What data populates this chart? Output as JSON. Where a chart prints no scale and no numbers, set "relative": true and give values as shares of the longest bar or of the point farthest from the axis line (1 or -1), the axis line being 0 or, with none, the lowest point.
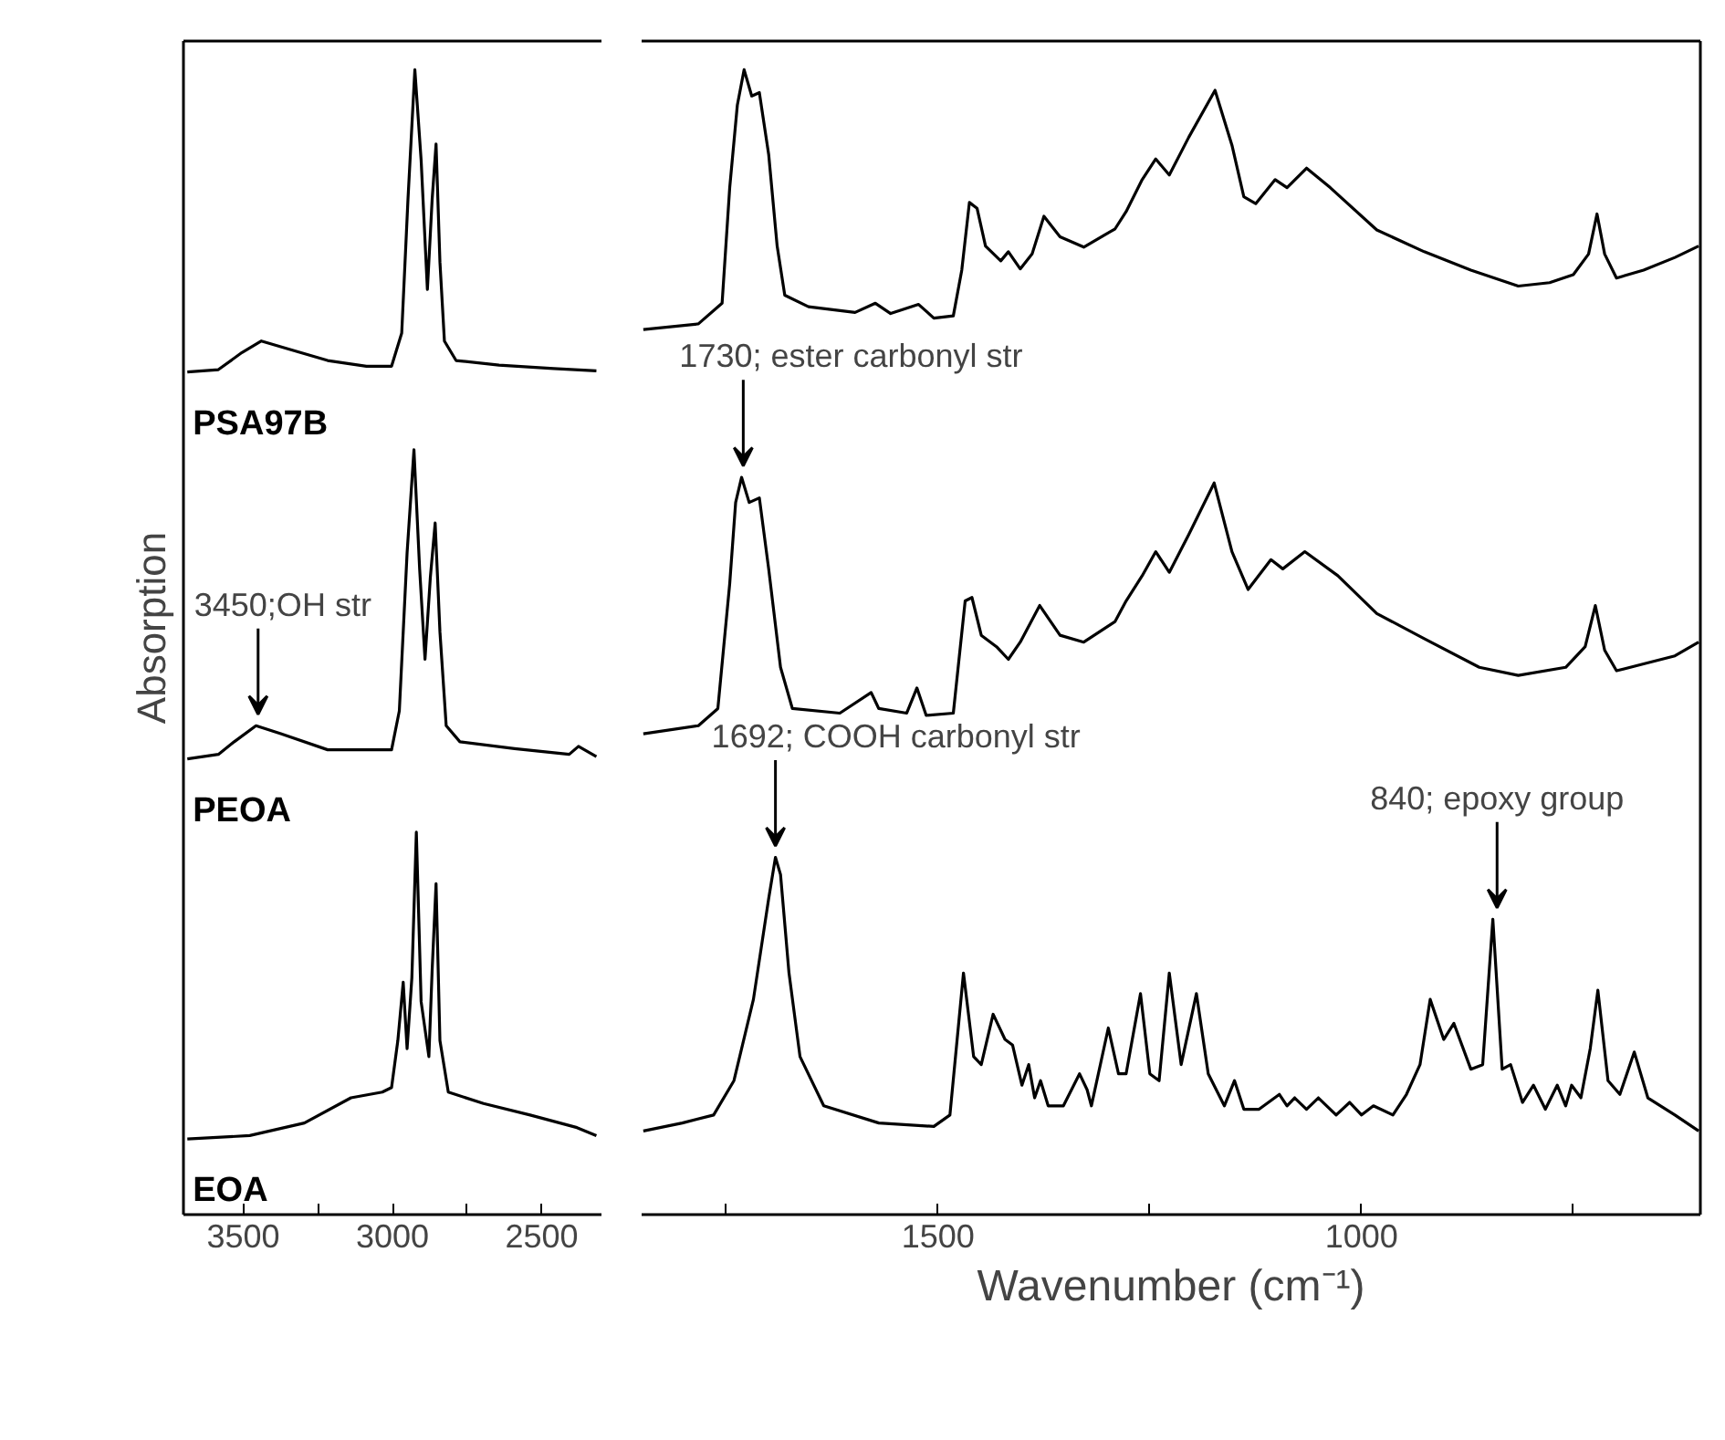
{
  "chart_data": [
    {
      "type": "line",
      "relative": true,
      "ylabel": "Absorption",
      "xlim": [
        3700,
        2300
      ],
      "xticks": [
        3500,
        {
          "value": 3250,
          "label": null
        },
        3000,
        {
          "value": 2750,
          "label": null
        },
        2500
      ],
      "tick_labels": "x",
      "series": [
        {
          "name": "PSA97B",
          "color": "#000000",
          "x": [
            3687,
            3583,
            3504,
            3439,
            3348,
            3217,
            3087,
            3003,
            2969,
            2948,
            2925,
            2904,
            2883,
            2867,
            2854,
            2841,
            2826,
            2787,
            2643,
            2460,
            2317
          ],
          "values": [
            0.736,
            0.738,
            0.753,
            0.763,
            0.756,
            0.746,
            0.741,
            0.741,
            0.77,
            0.887,
            1.0,
            0.921,
            0.808,
            0.887,
            0.935,
            0.832,
            0.763,
            0.746,
            0.742,
            0.739,
            0.737
          ]
        },
        {
          "name": "PEOA",
          "color": "#000000",
          "x": [
            3687,
            3583,
            3530,
            3457,
            3374,
            3217,
            3003,
            2977,
            2951,
            2928,
            2909,
            2891,
            2873,
            2857,
            2841,
            2820,
            2774,
            2591,
            2408,
            2377,
            2317
          ],
          "values": [
            0.398,
            0.402,
            0.413,
            0.427,
            0.42,
            0.406,
            0.406,
            0.44,
            0.578,
            0.668,
            0.564,
            0.485,
            0.557,
            0.604,
            0.509,
            0.427,
            0.413,
            0.407,
            0.402,
            0.409,
            0.4
          ]
        },
        {
          "name": "EOA",
          "color": "#000000",
          "x": [
            3687,
            3478,
            3295,
            3139,
            3034,
            3003,
            2982,
            2964,
            2951,
            2935,
            2920,
            2904,
            2878,
            2867,
            2854,
            2841,
            2813,
            2695,
            2539,
            2382,
            2317
          ],
          "values": [
            0.066,
            0.069,
            0.08,
            0.102,
            0.107,
            0.111,
            0.152,
            0.203,
            0.145,
            0.207,
            0.334,
            0.186,
            0.138,
            0.214,
            0.289,
            0.152,
            0.107,
            0.097,
            0.087,
            0.076,
            0.069
          ]
        }
      ],
      "annotations": [
        {
          "text": "3450;OH str",
          "x": 3450,
          "y": 0.427
        }
      ]
    },
    {
      "type": "line",
      "relative": true,
      "xlabel": "Wavenumber (cm⁻¹)",
      "xlim": [
        1850,
        600
      ],
      "xticks": [
        {
          "value": 1750,
          "label": null
        },
        1500,
        {
          "value": 1250,
          "label": null
        },
        1000,
        {
          "value": 750,
          "label": null
        }
      ],
      "tick_labels": "x",
      "series": [
        {
          "color": "#000000",
          "x": [
            1848,
            1783,
            1755,
            1746,
            1737,
            1729,
            1720,
            1711,
            1700,
            1690,
            1681,
            1653,
            1598,
            1574,
            1556,
            1523,
            1505,
            1482,
            1472,
            1463,
            1454,
            1444,
            1426,
            1417,
            1403,
            1389,
            1375,
            1356,
            1328,
            1291,
            1278,
            1259,
            1243,
            1227,
            1204,
            1173,
            1153,
            1139,
            1125,
            1102,
            1088,
            1065,
            1037,
            982,
            926,
            871,
            815,
            778,
            750,
            732,
            722,
            713,
            699,
            667,
            630,
            602
          ],
          "values": [
            0.773,
            0.778,
            0.796,
            0.897,
            0.969,
            1.0,
            0.977,
            0.98,
            0.926,
            0.846,
            0.803,
            0.793,
            0.788,
            0.796,
            0.787,
            0.795,
            0.783,
            0.785,
            0.825,
            0.884,
            0.879,
            0.846,
            0.833,
            0.841,
            0.826,
            0.839,
            0.872,
            0.854,
            0.845,
            0.861,
            0.876,
            0.904,
            0.922,
            0.908,
            0.941,
            0.982,
            0.934,
            0.889,
            0.883,
            0.904,
            0.897,
            0.914,
            0.897,
            0.86,
            0.841,
            0.825,
            0.811,
            0.814,
            0.821,
            0.839,
            0.874,
            0.839,
            0.818,
            0.825,
            0.836,
            0.846
          ]
        },
        {
          "color": "#000000",
          "x": [
            1848,
            1783,
            1760,
            1746,
            1739,
            1732,
            1723,
            1711,
            1700,
            1686,
            1672,
            1616,
            1579,
            1570,
            1537,
            1525,
            1514,
            1482,
            1468,
            1460,
            1449,
            1431,
            1417,
            1403,
            1380,
            1356,
            1328,
            1291,
            1278,
            1259,
            1243,
            1227,
            1204,
            1174,
            1153,
            1134,
            1107,
            1093,
            1067,
            1028,
            982,
            926,
            861,
            815,
            759,
            736,
            724,
            713,
            699,
            667,
            630,
            602
          ],
          "values": [
            0.42,
            0.427,
            0.442,
            0.551,
            0.622,
            0.644,
            0.622,
            0.626,
            0.564,
            0.478,
            0.442,
            0.438,
            0.456,
            0.442,
            0.438,
            0.46,
            0.436,
            0.438,
            0.536,
            0.539,
            0.506,
            0.496,
            0.485,
            0.5,
            0.532,
            0.506,
            0.5,
            0.518,
            0.536,
            0.558,
            0.579,
            0.561,
            0.594,
            0.639,
            0.579,
            0.546,
            0.572,
            0.564,
            0.579,
            0.558,
            0.525,
            0.503,
            0.478,
            0.471,
            0.478,
            0.496,
            0.532,
            0.493,
            0.475,
            0.481,
            0.488,
            0.5
          ]
        },
        {
          "color": "#000000",
          "x": [
            1848,
            1802,
            1765,
            1741,
            1718,
            1700,
            1692,
            1686,
            1676,
            1663,
            1635,
            1570,
            1505,
            1486,
            1470,
            1458,
            1449,
            1435,
            1421,
            1412,
            1401,
            1393,
            1386,
            1379,
            1370,
            1352,
            1333,
            1324,
            1319,
            1299,
            1287,
            1278,
            1261,
            1250,
            1239,
            1227,
            1213,
            1195,
            1181,
            1162,
            1150,
            1139,
            1121,
            1097,
            1088,
            1079,
            1065,
            1051,
            1030,
            1014,
            1000,
            986,
            963,
            947,
            931,
            919,
            903,
            891,
            871,
            857,
            845,
            834,
            824,
            810,
            797,
            783,
            769,
            759,
            752,
            741,
            730,
            721,
            709,
            695,
            678,
            662,
            630,
            602
          ],
          "values": [
            0.073,
            0.08,
            0.087,
            0.117,
            0.188,
            0.276,
            0.312,
            0.297,
            0.211,
            0.138,
            0.095,
            0.08,
            0.077,
            0.087,
            0.211,
            0.138,
            0.131,
            0.175,
            0.153,
            0.148,
            0.113,
            0.131,
            0.102,
            0.117,
            0.095,
            0.095,
            0.123,
            0.109,
            0.095,
            0.163,
            0.123,
            0.123,
            0.193,
            0.123,
            0.117,
            0.211,
            0.131,
            0.193,
            0.123,
            0.095,
            0.117,
            0.092,
            0.092,
            0.105,
            0.095,
            0.102,
            0.092,
            0.102,
            0.087,
            0.098,
            0.087,
            0.095,
            0.087,
            0.105,
            0.131,
            0.188,
            0.153,
            0.167,
            0.127,
            0.131,
            0.258,
            0.127,
            0.131,
            0.098,
            0.113,
            0.092,
            0.113,
            0.095,
            0.113,
            0.102,
            0.145,
            0.196,
            0.117,
            0.105,
            0.142,
            0.102,
            0.087,
            0.073
          ]
        }
      ],
      "annotations": [
        {
          "text": "1730; ester carbonyl str",
          "x": 1730,
          "y": 0.644
        },
        {
          "text": "1692; COOH carbonyl str",
          "x": 1692,
          "y": 0.312
        },
        {
          "text": "840; epoxy group",
          "x": 840,
          "y": 0.258
        }
      ]
    }
  ]
}
